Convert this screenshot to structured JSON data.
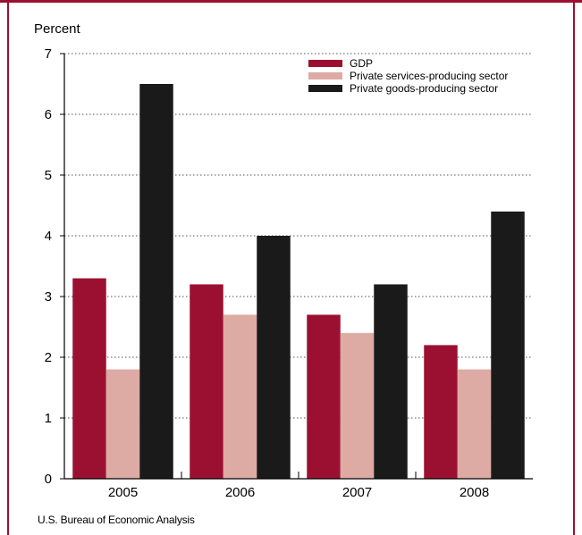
{
  "chart_data": {
    "type": "bar",
    "ylabel": "Percent",
    "ylim": [
      0,
      7
    ],
    "yticks": [
      0,
      1,
      2,
      3,
      4,
      5,
      6,
      7
    ],
    "grid": true,
    "legend_position": "top-right",
    "categories": [
      "2005",
      "2006",
      "2007",
      "2008"
    ],
    "series": [
      {
        "name": "GDP",
        "color": "#9b1030",
        "values": [
          3.3,
          3.2,
          2.7,
          2.2
        ]
      },
      {
        "name": "Private services-producing sector",
        "color": "#ddaaa4",
        "values": [
          1.8,
          2.7,
          2.4,
          1.8
        ]
      },
      {
        "name": "Private goods-producing sector",
        "color": "#1a1a1a",
        "values": [
          6.5,
          4.0,
          3.2,
          4.4
        ]
      }
    ]
  },
  "source": "U.S. Bureau of Economic Analysis"
}
